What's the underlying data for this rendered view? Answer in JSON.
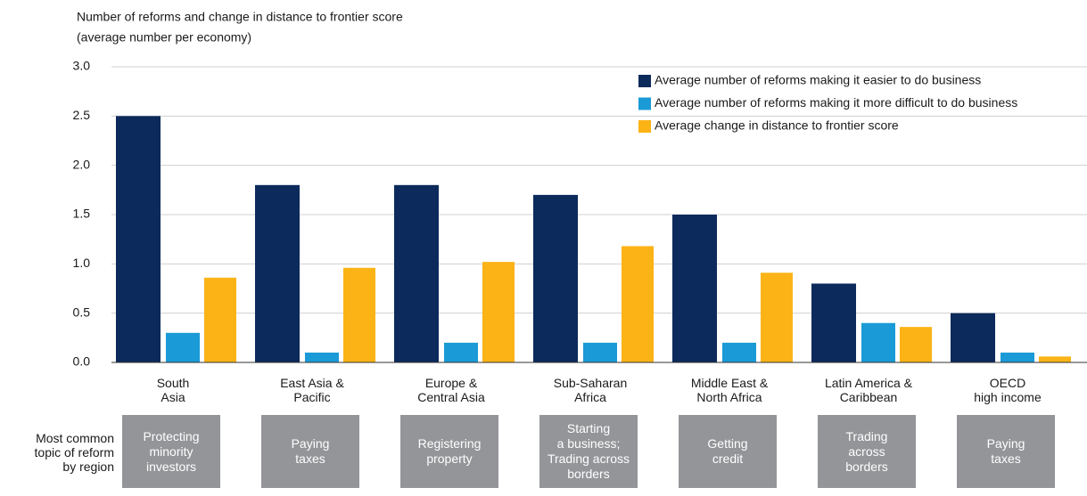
{
  "chart_data": {
    "type": "bar",
    "title": "Number of reforms and change in distance to frontier score",
    "subtitle": "(average number per economy)",
    "categories": [
      "South\nAsia",
      "East Asia &\nPacific",
      "Europe &\nCentral Asia",
      "Sub-Saharan\nAfrica",
      "Middle East &\nNorth Africa",
      "Latin America &\nCaribbean",
      "OECD\nhigh income"
    ],
    "series": [
      {
        "name": "Average number of reforms making it easier to do business",
        "color": "#0c2a5b",
        "values": [
          2.5,
          1.8,
          1.8,
          1.7,
          1.5,
          0.8,
          0.5
        ]
      },
      {
        "name": "Average number of reforms making it more difficult to do business",
        "color": "#1a9ad6",
        "values": [
          0.3,
          0.1,
          0.2,
          0.2,
          0.2,
          0.4,
          0.1
        ]
      },
      {
        "name": "Average change in distance to frontier score",
        "color": "#fbb316",
        "values": [
          0.86,
          0.96,
          1.02,
          1.18,
          0.91,
          0.36,
          0.06
        ]
      }
    ],
    "ylim": [
      0,
      3
    ],
    "yticks": [
      {
        "value": 0,
        "label": "0.0"
      },
      {
        "value": 0.5,
        "label": "0.5"
      },
      {
        "value": 1,
        "label": "1.0"
      },
      {
        "value": 1.5,
        "label": "1.5"
      },
      {
        "value": 2,
        "label": "2.0"
      },
      {
        "value": 2.5,
        "label": "2.5"
      },
      {
        "value": 3,
        "label": "3.0"
      }
    ],
    "grid": true,
    "legend": "top-right",
    "topic_label": "Most common\ntopic of reform\nby region",
    "topics": [
      "Protecting\nminority\ninvestors",
      "Paying\ntaxes",
      "Registering\nproperty",
      "Starting\na business;\nTrading across\nborders",
      "Getting\ncredit",
      "Trading\nacross\nborders",
      "Paying\ntaxes"
    ],
    "topic_color": "#939598"
  }
}
